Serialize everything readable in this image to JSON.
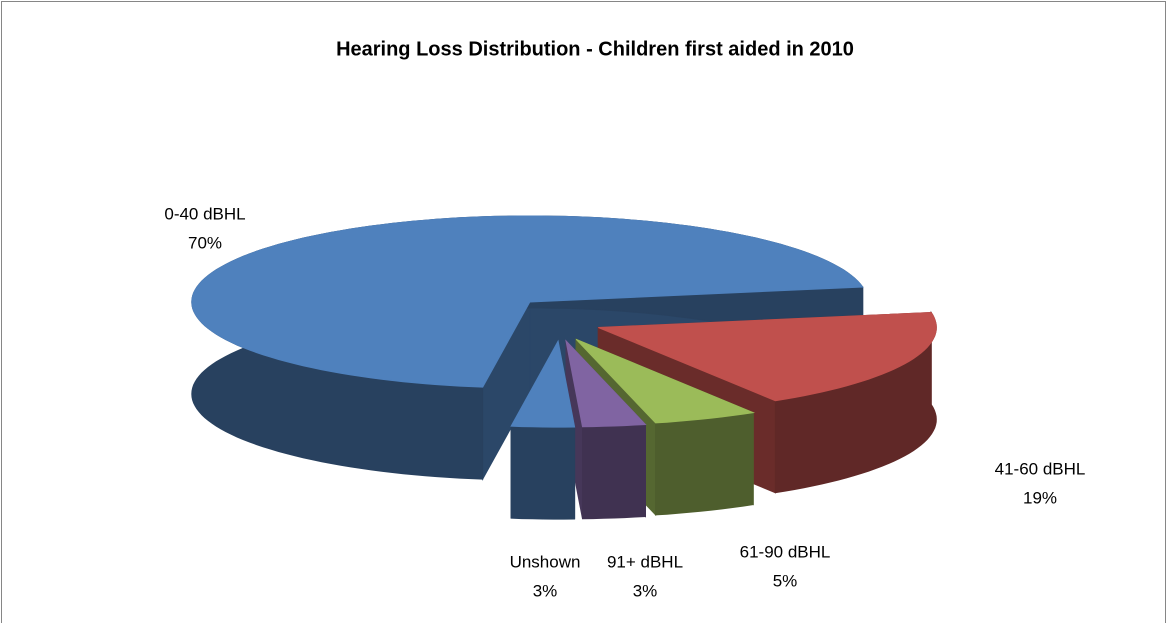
{
  "chart_data": {
    "type": "pie",
    "title": "Hearing Loss Distribution - Children first aided in 2010",
    "categories": [
      "0-40 dBHL",
      "41-60 dBHL",
      "61-90 dBHL",
      "91+ dBHL",
      "Unshown"
    ],
    "values": [
      70,
      19,
      5,
      3,
      3
    ],
    "value_labels": [
      "70%",
      "19%",
      "5%",
      "3%",
      "3%"
    ],
    "colors": [
      "#4f81bd",
      "#c0504d",
      "#9bbb59",
      "#8064a2",
      "#4f81bd"
    ]
  }
}
